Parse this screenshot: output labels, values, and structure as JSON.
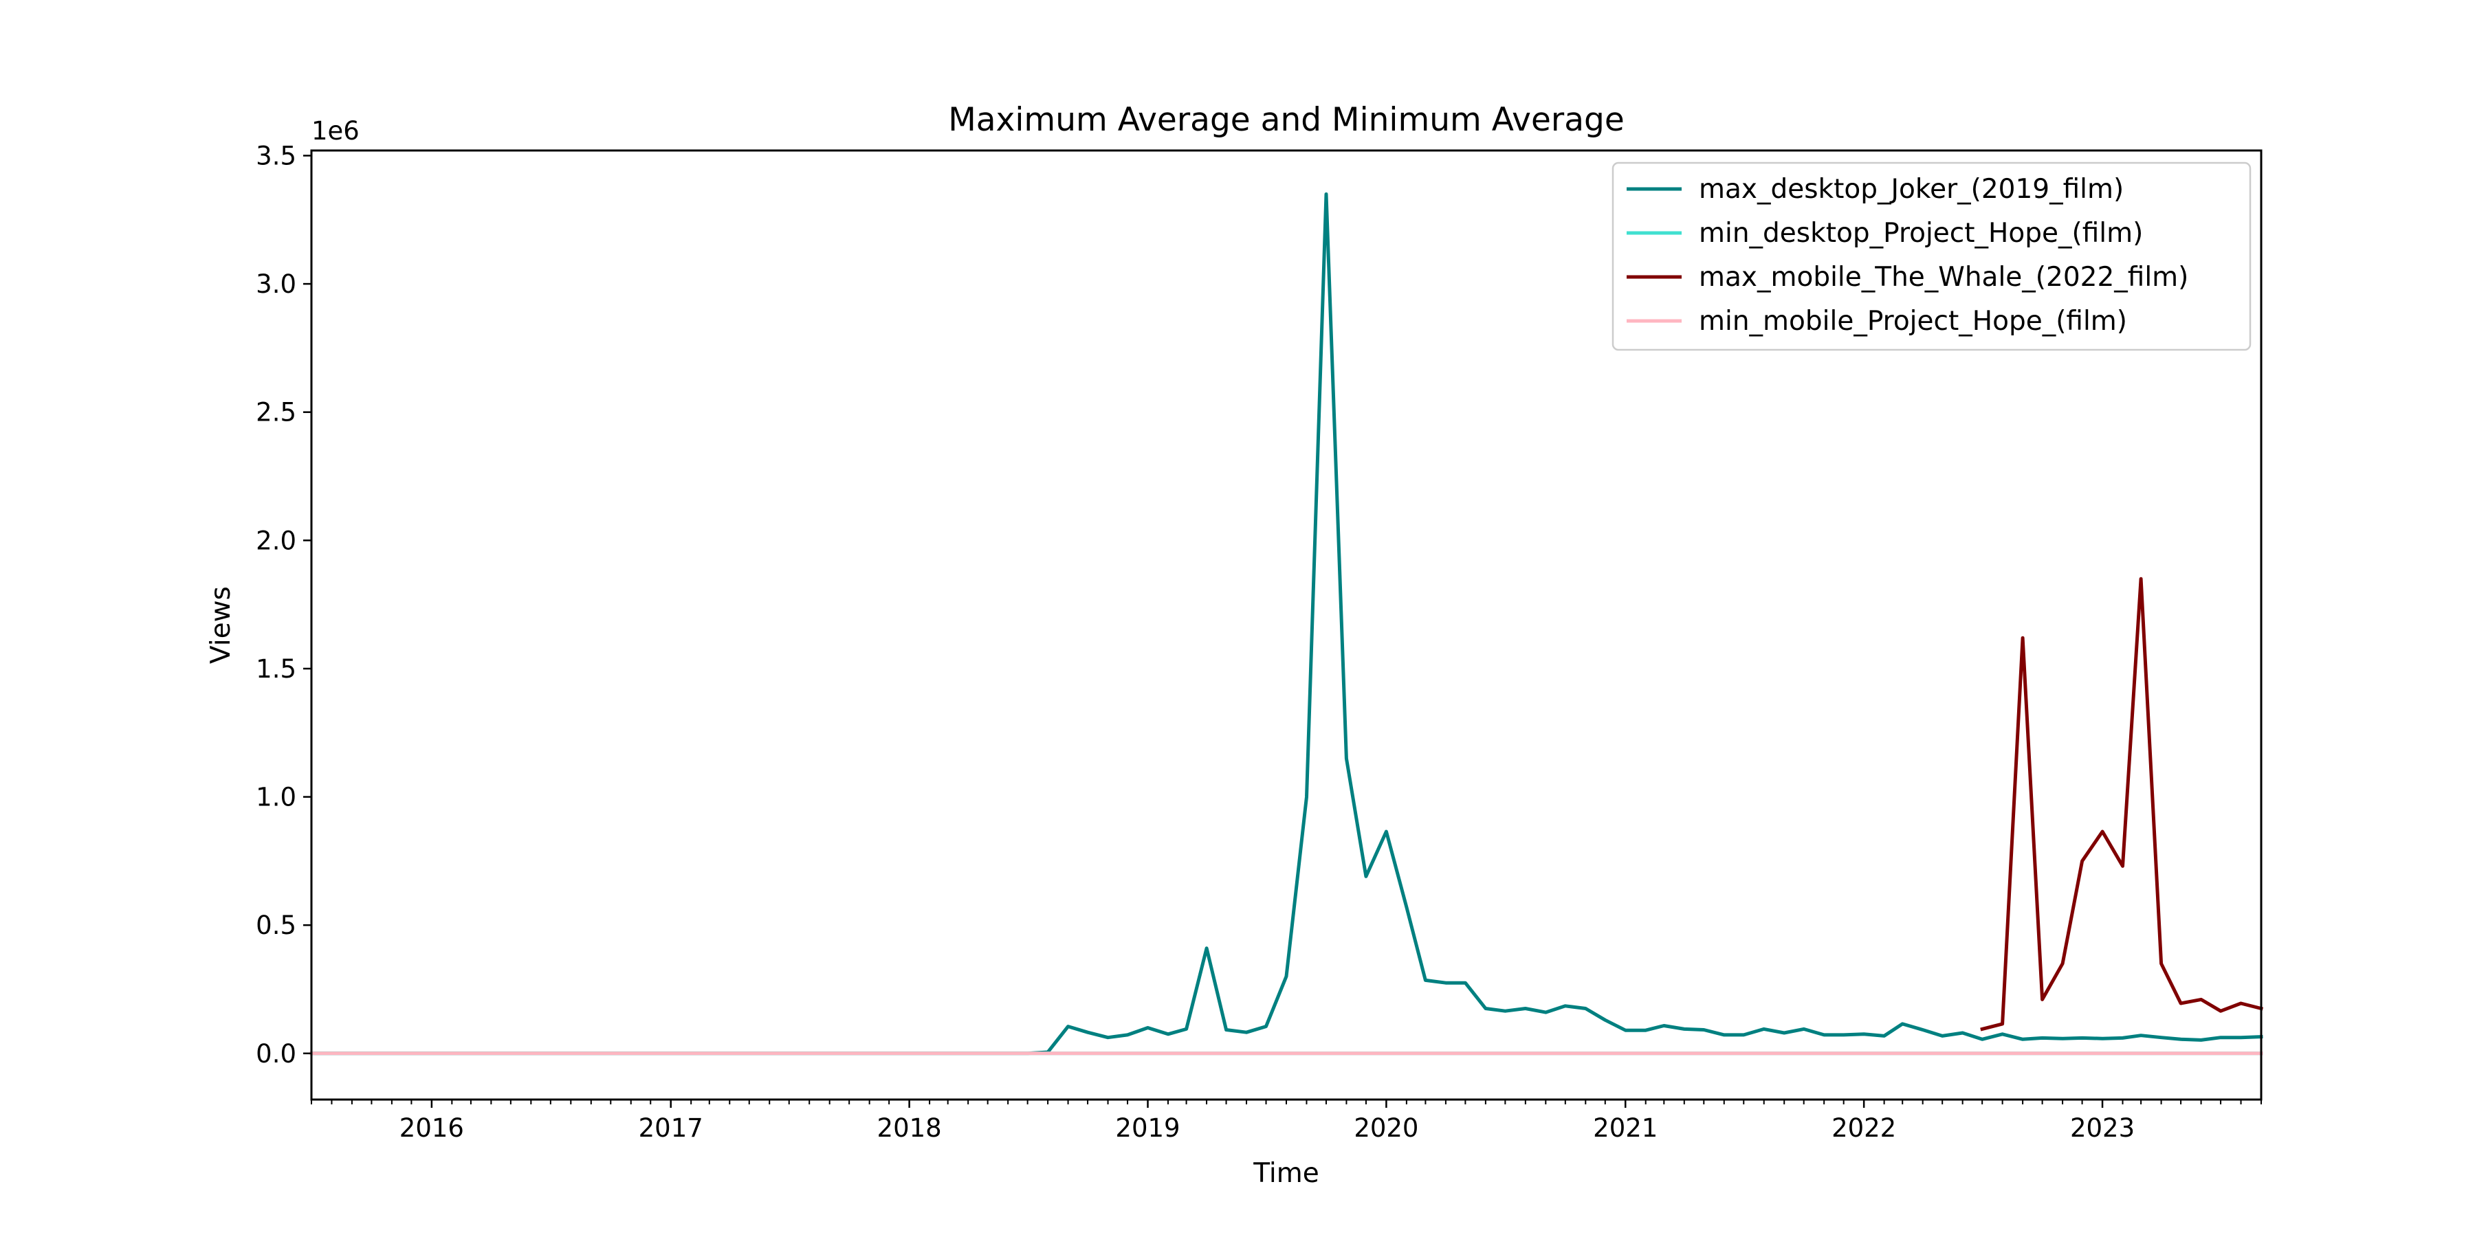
{
  "chart_data": {
    "type": "line",
    "title": "Maximum Average and Minimum Average",
    "xlabel": "Time",
    "ylabel": "Views",
    "y_offset_label": "1e6",
    "y_scale": 1000000,
    "xlim": [
      "2015-07-01",
      "2023-09-01"
    ],
    "ylim": [
      -180000,
      3520000
    ],
    "x_ticks": [
      "2016",
      "2017",
      "2018",
      "2019",
      "2020",
      "2021",
      "2022",
      "2023"
    ],
    "y_ticks": [
      0,
      500000,
      1000000,
      1500000,
      2000000,
      2500000,
      3000000,
      3500000
    ],
    "y_tick_labels": [
      "0.0",
      "0.5",
      "1.0",
      "1.5",
      "2.0",
      "2.5",
      "3.0",
      "3.5"
    ],
    "grid": false,
    "legend_position": "top-right",
    "series": [
      {
        "name": "max_desktop_Joker_(2019_film)",
        "color": "#008080",
        "x": [
          "2015-07-01",
          "2018-07-01",
          "2018-08-01",
          "2018-09-01",
          "2018-10-01",
          "2018-11-01",
          "2018-12-01",
          "2019-01-01",
          "2019-02-01",
          "2019-03-01",
          "2019-04-01",
          "2019-05-01",
          "2019-06-01",
          "2019-07-01",
          "2019-08-01",
          "2019-09-01",
          "2019-10-01",
          "2019-11-01",
          "2019-12-01",
          "2020-01-01",
          "2020-02-01",
          "2020-03-01",
          "2020-04-01",
          "2020-05-01",
          "2020-06-01",
          "2020-07-01",
          "2020-08-01",
          "2020-09-01",
          "2020-10-01",
          "2020-11-01",
          "2020-12-01",
          "2021-01-01",
          "2021-02-01",
          "2021-03-01",
          "2021-04-01",
          "2021-05-01",
          "2021-06-01",
          "2021-07-01",
          "2021-08-01",
          "2021-09-01",
          "2021-10-01",
          "2021-11-01",
          "2021-12-01",
          "2022-01-01",
          "2022-02-01",
          "2022-03-01",
          "2022-04-01",
          "2022-05-01",
          "2022-06-01",
          "2022-07-01",
          "2022-08-01",
          "2022-09-01",
          "2022-10-01",
          "2022-11-01",
          "2022-12-01",
          "2023-01-01",
          "2023-02-01",
          "2023-03-01",
          "2023-04-01",
          "2023-05-01",
          "2023-06-01",
          "2023-07-01",
          "2023-08-01",
          "2023-09-01"
        ],
        "y": [
          0,
          0,
          5000,
          105000,
          82000,
          62000,
          72000,
          100000,
          75000,
          95000,
          410000,
          92000,
          82000,
          105000,
          300000,
          1000000,
          3350000,
          1150000,
          690000,
          865000,
          570000,
          285000,
          275000,
          275000,
          175000,
          165000,
          175000,
          160000,
          185000,
          175000,
          130000,
          90000,
          90000,
          108000,
          95000,
          92000,
          72000,
          72000,
          95000,
          80000,
          95000,
          72000,
          72000,
          75000,
          68000,
          115000,
          92000,
          68000,
          80000,
          55000,
          75000,
          55000,
          60000,
          58000,
          60000,
          58000,
          60000,
          70000,
          62000,
          55000,
          52000,
          62000,
          62000,
          65000
        ]
      },
      {
        "name": "min_desktop_Project_Hope_(film)",
        "color": "#40e0d0",
        "x": [
          "2015-07-01",
          "2023-09-01"
        ],
        "y": [
          0,
          0
        ]
      },
      {
        "name": "max_mobile_The_Whale_(2022_film)",
        "color": "#800000",
        "x": [
          "2022-07-01",
          "2022-08-01",
          "2022-09-01",
          "2022-10-01",
          "2022-11-01",
          "2022-12-01",
          "2023-01-01",
          "2023-02-01",
          "2023-03-01",
          "2023-04-01",
          "2023-05-01",
          "2023-06-01",
          "2023-07-01",
          "2023-08-01",
          "2023-09-01"
        ],
        "y": [
          95000,
          115000,
          1620000,
          210000,
          350000,
          750000,
          865000,
          730000,
          1850000,
          350000,
          195000,
          210000,
          165000,
          195000,
          175000
        ]
      },
      {
        "name": "min_mobile_Project_Hope_(film)",
        "color": "#ffb6c1",
        "x": [
          "2015-07-01",
          "2023-09-01"
        ],
        "y": [
          0,
          0
        ]
      }
    ]
  }
}
